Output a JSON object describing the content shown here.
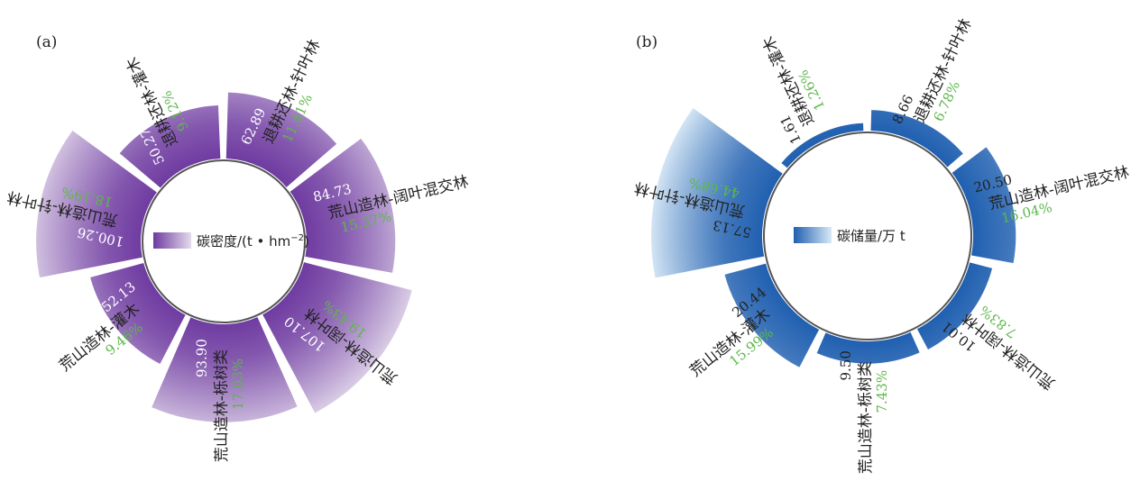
{
  "chart_data": [
    {
      "type": "polar-bar",
      "panel_label": "(a)",
      "legend": {
        "label": "碳密度/(t • hm",
        "superscript": "−2",
        "suffix": ")"
      },
      "categories": [
        "退耕还林-灌木",
        "退耕还林-针叶林",
        "荒山造林-阔叶混交林",
        "荒山造林-阔叶林",
        "荒山造林-栎树类",
        "荒山造林-灌木",
        "荒山造林-针叶林"
      ],
      "values": [
        50.27,
        62.89,
        84.73,
        107.1,
        93.9,
        52.13,
        100.26
      ],
      "value_labels": [
        "50.27",
        "62.89",
        "84.73",
        "107.10",
        "93.90",
        "52.13",
        "100.26"
      ],
      "percent_labels": [
        "9.12%",
        "11.41%",
        "15.37%",
        "19.43%",
        "17.03%",
        "9.46%",
        "18.19%"
      ],
      "colors": {
        "dark": "#6e3aa0",
        "light": "#e4dbec",
        "value_text": "#ffffff"
      }
    },
    {
      "type": "polar-bar",
      "panel_label": "(b)",
      "legend": {
        "label": "碳储量/万 t",
        "superscript": "",
        "suffix": ""
      },
      "categories": [
        "退耕还林-灌木",
        "退耕还林-针叶林",
        "荒山造林-阔叶混交林",
        "荒山造林-阔叶林",
        "荒山造林-栎树类",
        "荒山造林-灌木",
        "荒山造林-针叶林"
      ],
      "values": [
        1.61,
        8.66,
        20.5,
        10.01,
        9.5,
        20.44,
        57.13
      ],
      "value_labels": [
        "1.61",
        "8.66",
        "20.50",
        "10.01",
        "9.50",
        "20.44",
        "57.13"
      ],
      "percent_labels": [
        "1.26%",
        "6.78%",
        "16.04%",
        "7.83%",
        "7.43%",
        "15.99%",
        "44.68%"
      ],
      "colors": {
        "dark": "#1f5fb0",
        "light": "#d8e9f6",
        "value_text": "#222222"
      }
    }
  ]
}
